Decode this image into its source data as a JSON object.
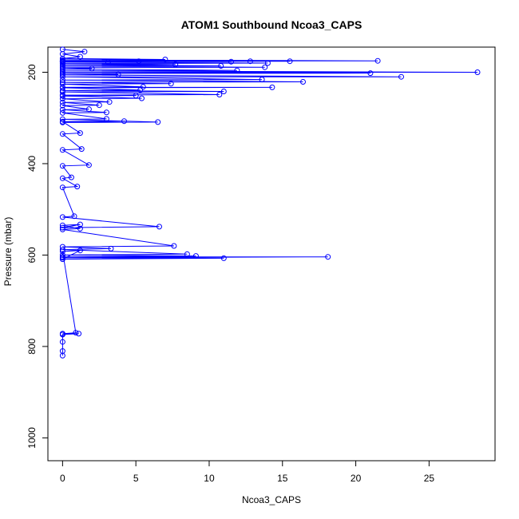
{
  "chart_data": {
    "type": "line",
    "title": "ATOM1 Southbound Ncoa3_CAPS",
    "xlabel": "Ncoa3_CAPS",
    "ylabel": "Pressure (mbar)",
    "xlim": [
      -1,
      29.5
    ],
    "ylim": [
      1050,
      145
    ],
    "y_inverted": true,
    "x_ticks": [
      0,
      5,
      10,
      15,
      20,
      25
    ],
    "y_ticks": [
      200,
      400,
      600,
      800,
      1000
    ],
    "x_tick_labels": [
      "0",
      "5",
      "10",
      "15",
      "20",
      "25"
    ],
    "y_tick_labels": [
      "200",
      "400",
      "600",
      "800",
      "1000"
    ],
    "grid": false,
    "series": [
      {
        "color": "#0000ff",
        "marker": "open-circle",
        "points": [
          {
            "x": 0,
            "y": 150
          },
          {
            "x": 1.5,
            "y": 155
          },
          {
            "x": 0,
            "y": 160
          },
          {
            "x": 1.2,
            "y": 166
          },
          {
            "x": 0,
            "y": 170
          },
          {
            "x": 7.0,
            "y": 172
          },
          {
            "x": 0,
            "y": 173
          },
          {
            "x": 21.5,
            "y": 175
          },
          {
            "x": 0,
            "y": 175
          },
          {
            "x": 15.5,
            "y": 176
          },
          {
            "x": 0,
            "y": 176
          },
          {
            "x": 12.8,
            "y": 176
          },
          {
            "x": 0,
            "y": 177
          },
          {
            "x": 11.5,
            "y": 177
          },
          {
            "x": 0,
            "y": 177
          },
          {
            "x": 5.2,
            "y": 176
          },
          {
            "x": 0,
            "y": 176
          },
          {
            "x": 3.1,
            "y": 178
          },
          {
            "x": 0,
            "y": 178
          },
          {
            "x": 14.0,
            "y": 180
          },
          {
            "x": 0,
            "y": 181
          },
          {
            "x": 7.7,
            "y": 183
          },
          {
            "x": 0,
            "y": 184
          },
          {
            "x": 10.8,
            "y": 186
          },
          {
            "x": 0,
            "y": 187
          },
          {
            "x": 13.8,
            "y": 189
          },
          {
            "x": 0,
            "y": 190
          },
          {
            "x": 2.0,
            "y": 192
          },
          {
            "x": 0,
            "y": 193
          },
          {
            "x": 11.9,
            "y": 196
          },
          {
            "x": 0,
            "y": 197
          },
          {
            "x": 28.3,
            "y": 200
          },
          {
            "x": 0,
            "y": 200
          },
          {
            "x": 21.0,
            "y": 202
          },
          {
            "x": 0,
            "y": 203
          },
          {
            "x": 3.8,
            "y": 205
          },
          {
            "x": 0,
            "y": 206
          },
          {
            "x": 23.1,
            "y": 210
          },
          {
            "x": 0,
            "y": 210
          },
          {
            "x": 13.6,
            "y": 216
          },
          {
            "x": 0,
            "y": 217
          },
          {
            "x": 16.4,
            "y": 221
          },
          {
            "x": 0,
            "y": 222
          },
          {
            "x": 7.4,
            "y": 225
          },
          {
            "x": 0,
            "y": 226
          },
          {
            "x": 5.5,
            "y": 232
          },
          {
            "x": 0,
            "y": 233
          },
          {
            "x": 14.3,
            "y": 233
          },
          {
            "x": 0,
            "y": 234
          },
          {
            "x": 5.3,
            "y": 239
          },
          {
            "x": 0,
            "y": 240
          },
          {
            "x": 11.0,
            "y": 242
          },
          {
            "x": 0,
            "y": 243
          },
          {
            "x": 10.7,
            "y": 249
          },
          {
            "x": 0,
            "y": 250
          },
          {
            "x": 5.0,
            "y": 251
          },
          {
            "x": 0,
            "y": 252
          },
          {
            "x": 5.4,
            "y": 257
          },
          {
            "x": 0,
            "y": 258
          },
          {
            "x": 3.2,
            "y": 265
          },
          {
            "x": 0,
            "y": 266
          },
          {
            "x": 2.5,
            "y": 272
          },
          {
            "x": 0,
            "y": 273
          },
          {
            "x": 1.8,
            "y": 281
          },
          {
            "x": 0,
            "y": 282
          },
          {
            "x": 3.0,
            "y": 288
          },
          {
            "x": 0,
            "y": 289
          },
          {
            "x": 3.0,
            "y": 302
          },
          {
            "x": 0,
            "y": 303
          },
          {
            "x": 6.5,
            "y": 309
          },
          {
            "x": 0,
            "y": 310
          },
          {
            "x": 4.2,
            "y": 307
          },
          {
            "x": 0,
            "y": 308
          },
          {
            "x": 1.2,
            "y": 333
          },
          {
            "x": 0,
            "y": 335
          },
          {
            "x": 1.3,
            "y": 368
          },
          {
            "x": 0,
            "y": 370
          },
          {
            "x": 1.8,
            "y": 403
          },
          {
            "x": 0,
            "y": 405
          },
          {
            "x": 0.6,
            "y": 430
          },
          {
            "x": 0,
            "y": 432
          },
          {
            "x": 1.0,
            "y": 450
          },
          {
            "x": 0,
            "y": 452
          },
          {
            "x": 0.8,
            "y": 515
          },
          {
            "x": 0,
            "y": 517
          },
          {
            "x": 6.6,
            "y": 538
          },
          {
            "x": 0,
            "y": 540
          },
          {
            "x": 1.2,
            "y": 533
          },
          {
            "x": 0,
            "y": 535
          },
          {
            "x": 1.2,
            "y": 542
          },
          {
            "x": 0,
            "y": 544
          },
          {
            "x": 7.6,
            "y": 580
          },
          {
            "x": 0,
            "y": 582
          },
          {
            "x": 3.3,
            "y": 586
          },
          {
            "x": 0,
            "y": 588
          },
          {
            "x": 8.5,
            "y": 598
          },
          {
            "x": 0,
            "y": 600
          },
          {
            "x": 9.1,
            "y": 602
          },
          {
            "x": 0,
            "y": 604
          },
          {
            "x": 18.1,
            "y": 604
          },
          {
            "x": 0,
            "y": 606
          },
          {
            "x": 11.0,
            "y": 607
          },
          {
            "x": 0,
            "y": 609
          },
          {
            "x": 1.2,
            "y": 590
          },
          {
            "x": 0,
            "y": 592
          },
          {
            "x": 0.9,
            "y": 770
          },
          {
            "x": 0,
            "y": 772
          },
          {
            "x": 1.1,
            "y": 772
          },
          {
            "x": 0,
            "y": 774
          },
          {
            "x": 0,
            "y": 790
          },
          {
            "x": 0,
            "y": 810
          },
          {
            "x": 0,
            "y": 820
          }
        ]
      }
    ]
  }
}
